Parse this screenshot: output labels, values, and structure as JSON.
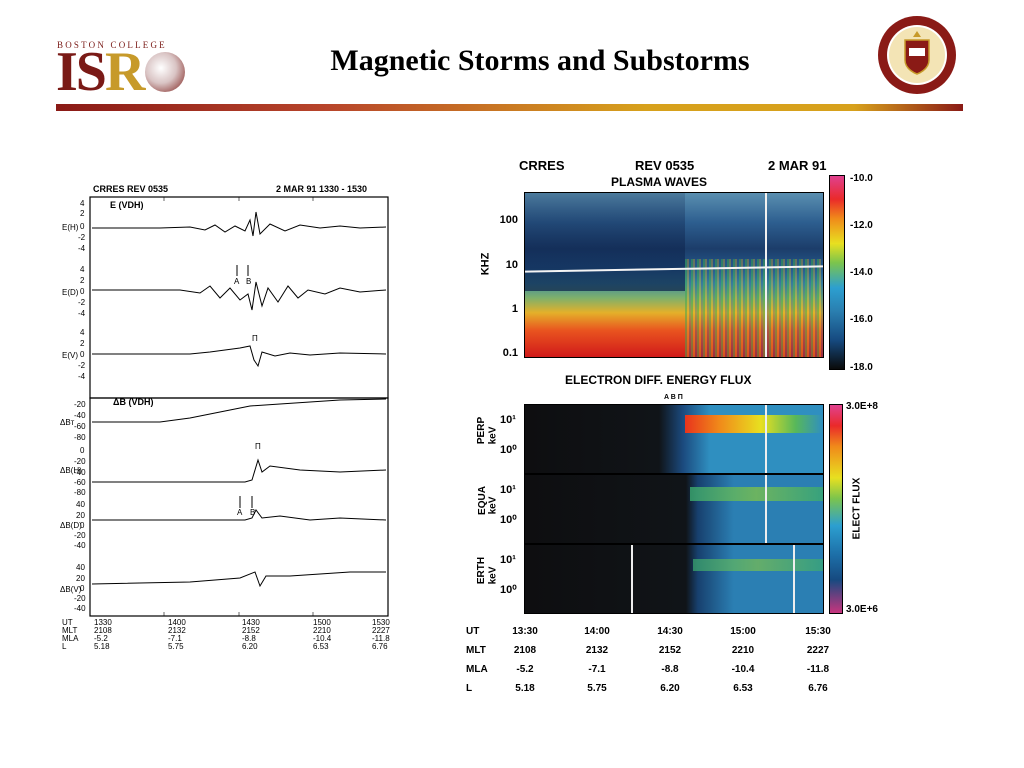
{
  "header": {
    "logo_small": "BOSTON COLLEGE",
    "logo_main_a": "IS",
    "logo_main_b": "R",
    "title": "Magnetic Storms and Substorms"
  },
  "seal": {
    "text": "COLLEGIUM BOSTONIENSE MDCCCLXIII"
  },
  "left_figure": {
    "header_left": "CRRES  REV 0535",
    "header_right": "2 MAR 91 1330 - 1530",
    "panel_e_title": "E (VDH)",
    "panel_b_title": "ΔB  (VDH)",
    "labels": {
      "eh": "E(H)",
      "ed": "E(D)",
      "ev": "E(V)",
      "bt": "ΔBᴛ",
      "bh": "ΔB(H)",
      "bd": "ΔB(D)",
      "bv": "ΔB(V)"
    },
    "ticks": {
      "eh": [
        "4",
        "2",
        "0",
        "-2",
        "-4"
      ],
      "ed": [
        "4",
        "2",
        "0",
        "-2",
        "-4"
      ],
      "ev": [
        "4",
        "2",
        "0",
        "-2",
        "-4"
      ],
      "bt": [
        "-20",
        "-40",
        "-60",
        "-80"
      ],
      "bh": [
        "0",
        "-20",
        "-40",
        "-60",
        "-80"
      ],
      "bd": [
        "40",
        "20",
        "0",
        "-20",
        "-40"
      ],
      "bv": [
        "40",
        "20",
        "0",
        "-20",
        "-40"
      ]
    },
    "markers": {
      "a": "A",
      "b": "B",
      "pi": "Π"
    },
    "table": {
      "row_labels": [
        "UT",
        "MLT",
        "MLA",
        "L"
      ],
      "columns": [
        [
          "1330",
          "2108",
          "-5.2",
          "5.18"
        ],
        [
          "1400",
          "2132",
          "-7.1",
          "5.75"
        ],
        [
          "1430",
          "2152",
          "-8.8",
          "6.20"
        ],
        [
          "1500",
          "2210",
          "-10.4",
          "6.53"
        ],
        [
          "1530",
          "2227",
          "-11.8",
          "6.76"
        ]
      ]
    }
  },
  "right_figure": {
    "header_left": "CRRES",
    "header_mid": "REV 0535",
    "header_right": "2 MAR 91",
    "plasma_title": "PLASMA WAVES",
    "plasma_ylabel": "KHZ",
    "plasma_yticks": [
      "100",
      "10",
      "1",
      "0.1"
    ],
    "plasma_colorbar": [
      "-10.0",
      "-12.0",
      "-14.0",
      "-16.0",
      "-18.0"
    ],
    "electron_title": "ELECTRON DIFF. ENERGY FLUX",
    "electron_markers": "A  B Π",
    "panels": [
      {
        "name": "PERP",
        "unit": "keV"
      },
      {
        "name": "EQUA",
        "unit": "keV"
      },
      {
        "name": "ERTH",
        "unit": "keV"
      }
    ],
    "flux_ticks": [
      "10¹",
      "10⁰"
    ],
    "flux_colorbar_top": "3.0E+8",
    "flux_colorbar_bottom": "3.0E+6",
    "flux_colorbar_label": "ELECT FLUX",
    "table": {
      "row_labels": [
        "UT",
        "MLT",
        "MLA",
        "L"
      ],
      "columns": [
        [
          "13:30",
          "2108",
          "-5.2",
          "5.18"
        ],
        [
          "14:00",
          "2132",
          "-7.1",
          "5.75"
        ],
        [
          "14:30",
          "2152",
          "-8.8",
          "6.20"
        ],
        [
          "15:00",
          "2210",
          "-10.4",
          "6.53"
        ],
        [
          "15:30",
          "2227",
          "-11.8",
          "6.76"
        ]
      ]
    }
  },
  "colors": {
    "maroon": "#7a1a16",
    "gold": "#d7a11c"
  }
}
